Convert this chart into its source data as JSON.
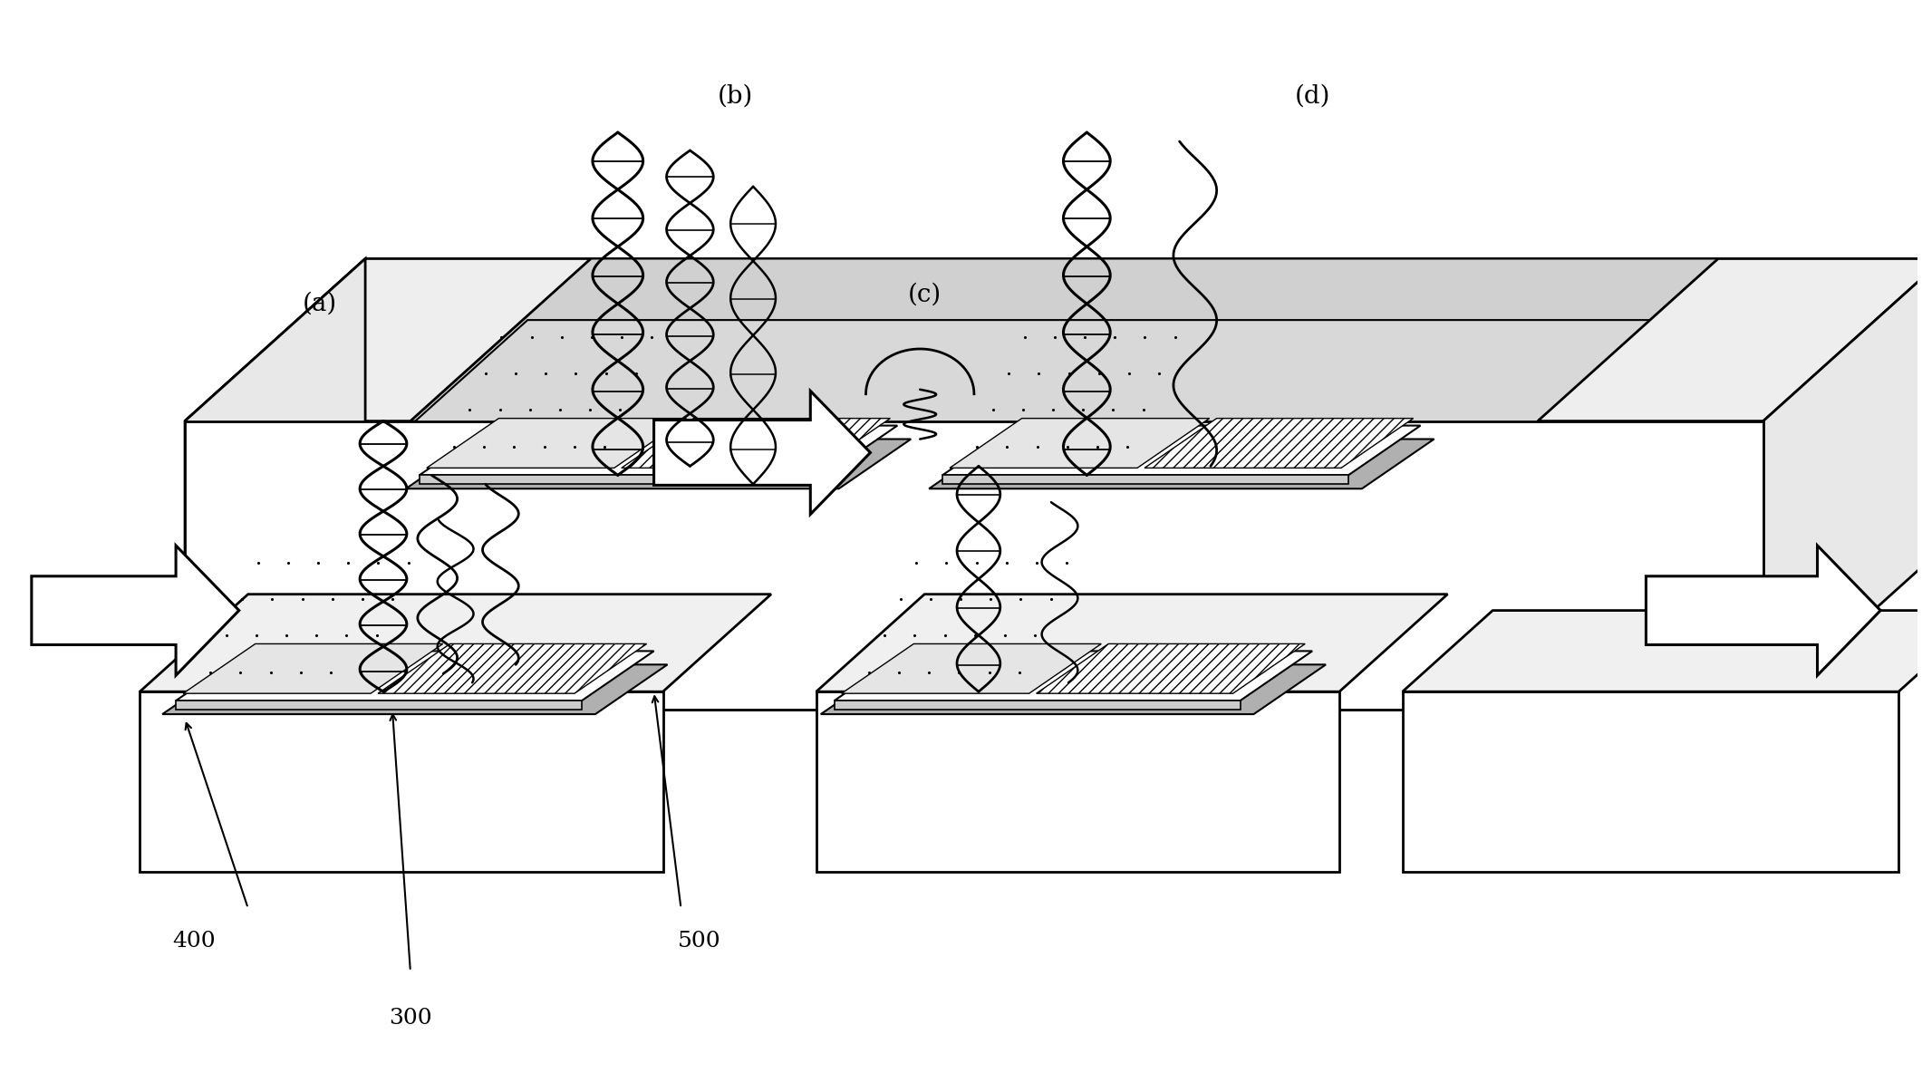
{
  "bg_color": "#ffffff",
  "line_color": "#000000",
  "label_a": "(a)",
  "label_b": "(b)",
  "label_c": "(c)",
  "label_d": "(d)",
  "num_300": "300",
  "num_400": "400",
  "num_500": "500",
  "figsize": [
    21.21,
    11.84
  ],
  "dpi": 100
}
